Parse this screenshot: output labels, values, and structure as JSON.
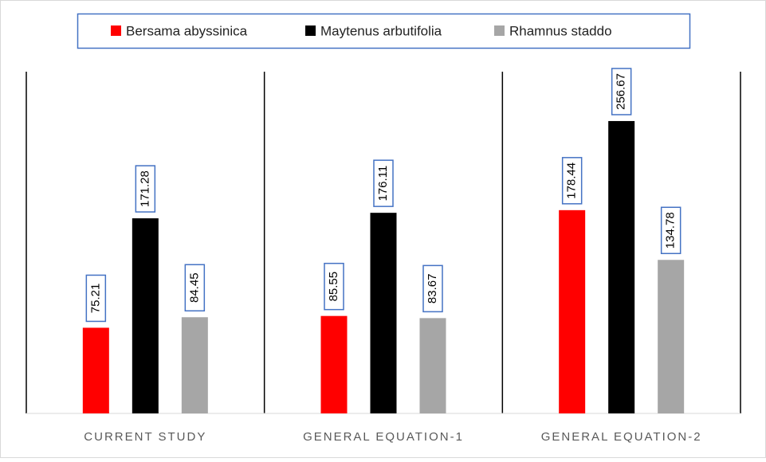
{
  "chart_data": {
    "type": "bar",
    "categories": [
      "CURRENT STUDY",
      "GENERAL EQUATION-1",
      "GENERAL EQUATION-2"
    ],
    "series": [
      {
        "name": "Bersama abyssinica",
        "color": "#ff0000",
        "values": [
          75.21,
          85.55,
          178.44
        ]
      },
      {
        "name": "Maytenus arbutifolia",
        "color": "#000000",
        "values": [
          171.28,
          176.11,
          256.67
        ]
      },
      {
        "name": "Rhamnus staddo",
        "color": "#a6a6a6",
        "values": [
          84.45,
          83.67,
          134.78
        ]
      }
    ],
    "ylim": [
      0,
      300
    ]
  }
}
